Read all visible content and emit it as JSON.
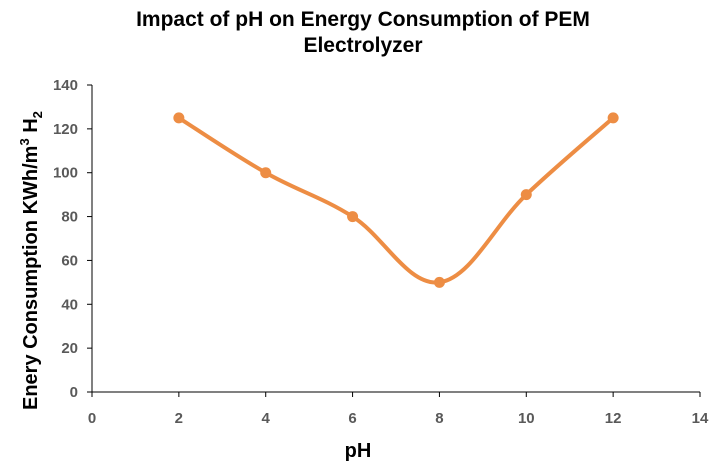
{
  "chart_data": {
    "type": "line",
    "title_lines": [
      "Impact of pH on Energy Consumption of PEM",
      "Electrolyzer"
    ],
    "xlabel": "pH",
    "ylabel_parts": {
      "main": "Enery Consumption KWh/m",
      "sup": "3",
      "mid": " H",
      "sub": "2"
    },
    "xlim": [
      0,
      14
    ],
    "ylim": [
      0,
      140
    ],
    "xticks": [
      "0",
      "2",
      "4",
      "6",
      "8",
      "10",
      "12",
      "14"
    ],
    "yticks": [
      "0",
      "20",
      "40",
      "60",
      "80",
      "100",
      "120",
      "140"
    ],
    "grid": false,
    "smooth": true,
    "series": [
      {
        "x": [
          2,
          4,
          6,
          8,
          10,
          12
        ],
        "y": [
          125,
          100,
          80,
          50,
          90,
          125
        ]
      }
    ]
  },
  "colors": {
    "series": "#ED8D44",
    "axis": "#000000",
    "tick_text": "#595959"
  }
}
